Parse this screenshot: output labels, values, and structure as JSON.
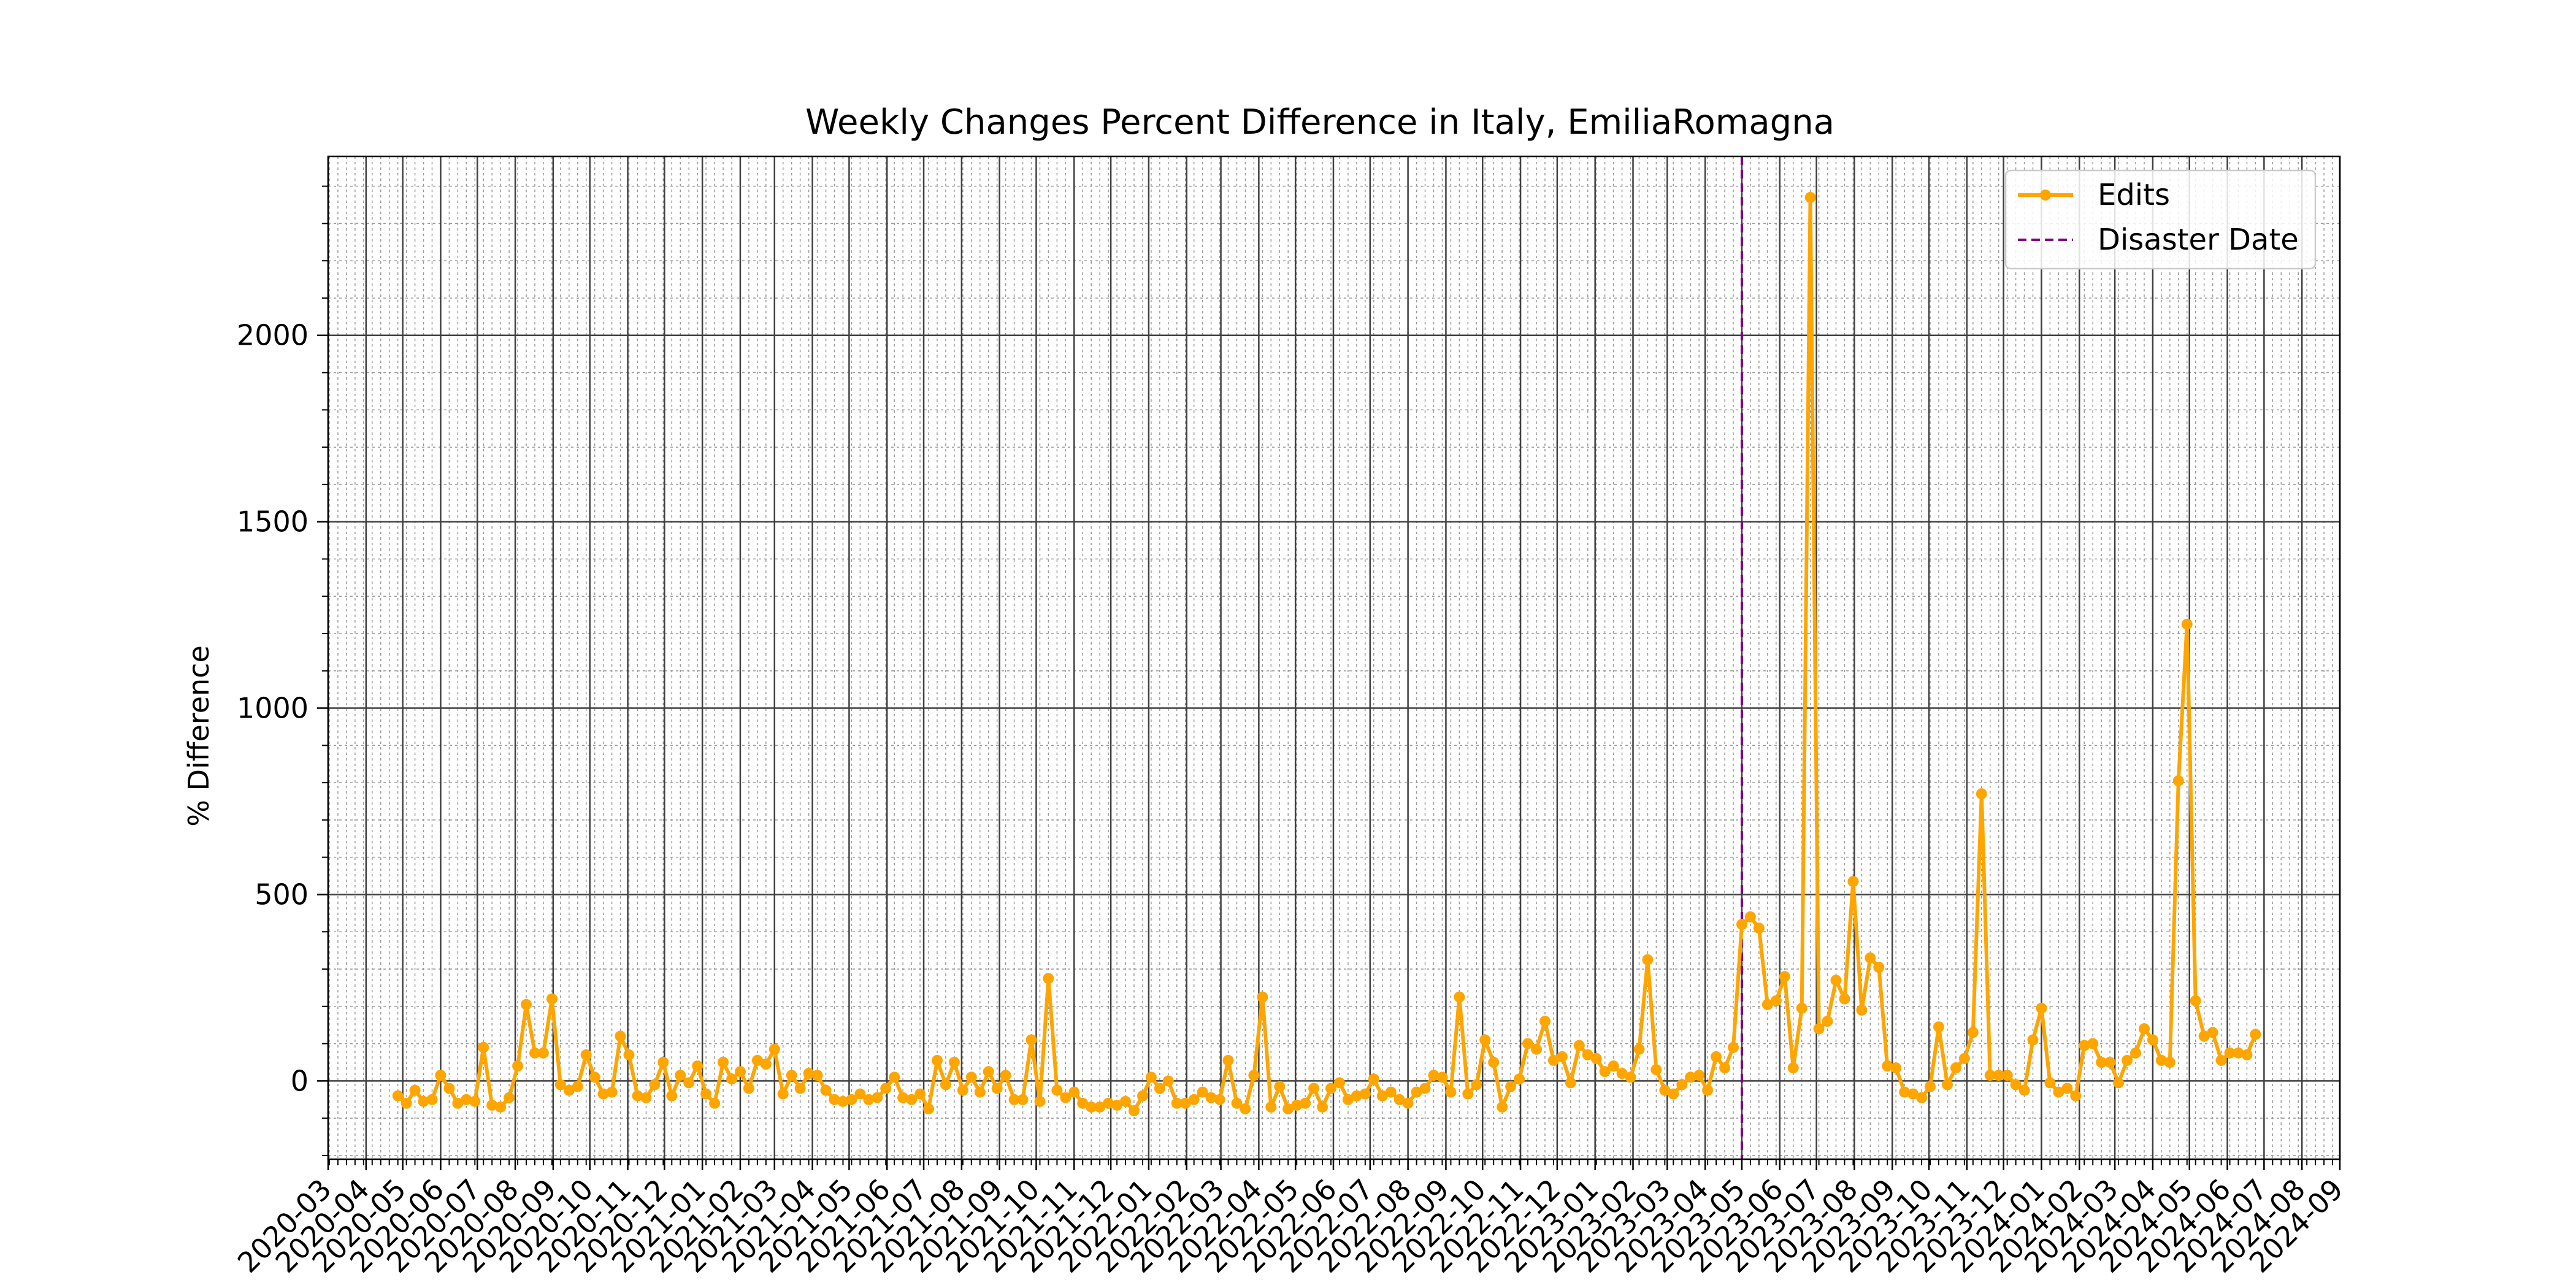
{
  "chart_data": {
    "type": "line",
    "title": "Weekly Changes Percent Difference in Italy, EmiliaRomagna",
    "xlabel": "",
    "ylabel": "% Difference",
    "x_axis": "date",
    "xlim": [
      "2020-03-01",
      "2024-09-01"
    ],
    "ylim": [
      -210,
      2480
    ],
    "yticks": [
      0,
      500,
      1000,
      1500,
      2000
    ],
    "xtick_labels": [
      "2020-03",
      "2020-04",
      "2020-05",
      "2020-06",
      "2020-07",
      "2020-08",
      "2020-09",
      "2020-10",
      "2020-11",
      "2020-12",
      "2021-01",
      "2021-02",
      "2021-03",
      "2021-04",
      "2021-05",
      "2021-06",
      "2021-07",
      "2021-08",
      "2021-09",
      "2021-10",
      "2021-11",
      "2021-12",
      "2022-01",
      "2022-02",
      "2022-03",
      "2022-04",
      "2022-05",
      "2022-06",
      "2022-07",
      "2022-08",
      "2022-09",
      "2022-10",
      "2022-11",
      "2022-12",
      "2023-01",
      "2023-02",
      "2023-03",
      "2023-04",
      "2023-05",
      "2023-06",
      "2023-07",
      "2023-08",
      "2023-09",
      "2023-10",
      "2023-11",
      "2023-12",
      "2024-01",
      "2024-02",
      "2024-03",
      "2024-04",
      "2024-05",
      "2024-06",
      "2024-07",
      "2024-08",
      "2024-09"
    ],
    "grid": true,
    "legend_position": "top-right",
    "colors": {
      "edits": "#FFA500",
      "disaster": "#800080",
      "grid_major": "#404040",
      "grid_minor": "#999999"
    },
    "series": [
      {
        "name": "Edits",
        "style": "line-with-markers",
        "start_date": "2020-04-27",
        "step_days": 7,
        "values": [
          -40,
          -60,
          -25,
          -55,
          -50,
          15,
          -20,
          -60,
          -50,
          -55,
          90,
          -65,
          -70,
          -45,
          40,
          205,
          75,
          75,
          220,
          -10,
          -25,
          -15,
          70,
          10,
          -35,
          -30,
          120,
          70,
          -40,
          -45,
          -10,
          50,
          -40,
          15,
          -5,
          40,
          -35,
          -60,
          50,
          5,
          25,
          -20,
          55,
          45,
          85,
          -35,
          15,
          -20,
          20,
          15,
          -25,
          -50,
          -55,
          -50,
          -35,
          -50,
          -45,
          -20,
          10,
          -45,
          -50,
          -35,
          -75,
          55,
          -10,
          50,
          -25,
          10,
          -30,
          25,
          -20,
          15,
          -50,
          -50,
          110,
          -55,
          275,
          -25,
          -45,
          -30,
          -60,
          -70,
          -70,
          -60,
          -65,
          -55,
          -80,
          -40,
          10,
          -20,
          0,
          -60,
          -60,
          -50,
          -30,
          -45,
          -50,
          55,
          -60,
          -75,
          15,
          225,
          -70,
          -15,
          -75,
          -65,
          -60,
          -20,
          -70,
          -20,
          -5,
          -50,
          -40,
          -35,
          5,
          -40,
          -30,
          -50,
          -60,
          -30,
          -20,
          15,
          10,
          -30,
          225,
          -35,
          -10,
          110,
          50,
          -70,
          -15,
          5,
          100,
          85,
          160,
          55,
          65,
          -5,
          95,
          70,
          60,
          25,
          40,
          20,
          10,
          85,
          325,
          30,
          -25,
          -35,
          -10,
          10,
          15,
          -25,
          65,
          35,
          90,
          420,
          440,
          410,
          205,
          215,
          280,
          35,
          195,
          2370,
          140,
          160,
          270,
          220,
          535,
          190,
          330,
          305,
          40,
          35,
          -30,
          -35,
          -45,
          -15,
          145,
          -10,
          35,
          60,
          130,
          770,
          15,
          15,
          15,
          -10,
          -25,
          110,
          195,
          -5,
          -30,
          -20,
          -40,
          95,
          100,
          50,
          50,
          -5,
          55,
          75,
          140,
          110,
          55,
          50,
          805,
          1225,
          215,
          120,
          130,
          55,
          75,
          75,
          70,
          125
        ]
      },
      {
        "name": "Disaster Date",
        "style": "dashed-vertical",
        "date": "2023-05-01"
      }
    ]
  }
}
